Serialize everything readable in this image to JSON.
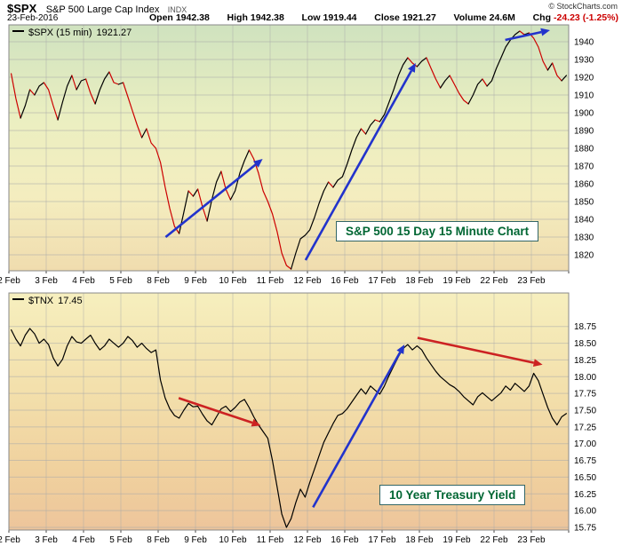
{
  "header": {
    "symbol": "$SPX",
    "name": "S&P 500 Large Cap Index",
    "exchange": "INDX",
    "copyright": "© StockCharts.com",
    "date": "23-Feb-2016",
    "quote": {
      "open_label": "Open",
      "open": "1942.38",
      "high_label": "High",
      "high": "1942.38",
      "low_label": "Low",
      "low": "1919.44",
      "close_label": "Close",
      "close": "1921.27",
      "volume_label": "Volume",
      "volume": "24.6M",
      "chg_label": "Chg",
      "chg": "-24.23 (-1.25%)"
    }
  },
  "colors": {
    "line_black": "#000000",
    "line_red": "#cc0000",
    "arrow_blue": "#2233cc",
    "arrow_red": "#cc2222",
    "grid": "#aaaaaa",
    "border": "#888888",
    "tick_text": "#000000"
  },
  "chart_data": [
    {
      "type": "line",
      "title": "S&P 500 15 Day 15 Minute Chart",
      "legend": {
        "symbol": "$SPX (15 min)",
        "value": "1921.27"
      },
      "categories": [
        "2 Feb",
        "3 Feb",
        "4 Feb",
        "5 Feb",
        "8 Feb",
        "9 Feb",
        "10 Feb",
        "11 Feb",
        "12 Feb",
        "16 Feb",
        "17 Feb",
        "18 Feb",
        "19 Feb",
        "22 Feb",
        "23 Feb"
      ],
      "points_per_day": 8,
      "ylim": [
        1811,
        1949.5
      ],
      "yticks": [
        "1940",
        "1930",
        "1920",
        "1910",
        "1900",
        "1890",
        "1880",
        "1870",
        "1860",
        "1850",
        "1840",
        "1830",
        "1820"
      ],
      "color_mode": "updown",
      "values": [
        1922,
        1908,
        1897,
        1904,
        1913,
        1910,
        1915,
        1917,
        1913,
        1904,
        1896,
        1906,
        1915,
        1921,
        1913,
        1918,
        1919,
        1911,
        1905,
        1913,
        1919,
        1923,
        1917,
        1916,
        1917,
        1909,
        1901,
        1893,
        1886,
        1891,
        1883,
        1880,
        1872,
        1858,
        1846,
        1836,
        1832,
        1844,
        1856,
        1853,
        1857,
        1847,
        1839,
        1851,
        1861,
        1867,
        1857,
        1851,
        1856,
        1866,
        1873,
        1879,
        1874,
        1866,
        1856,
        1850,
        1843,
        1833,
        1821,
        1814,
        1812,
        1821,
        1829,
        1831,
        1834,
        1841,
        1849,
        1856,
        1861,
        1858,
        1862,
        1864,
        1871,
        1879,
        1886,
        1891,
        1888,
        1893,
        1896,
        1895,
        1899,
        1906,
        1913,
        1921,
        1927,
        1931,
        1928,
        1926,
        1929,
        1931,
        1925,
        1919,
        1914,
        1918,
        1921,
        1916,
        1911,
        1907,
        1905,
        1910,
        1916,
        1919,
        1915,
        1918,
        1925,
        1931,
        1937,
        1941,
        1944,
        1946,
        1944,
        1945,
        1942,
        1937,
        1929,
        1924,
        1928,
        1921,
        1918,
        1921
      ],
      "annotations": {
        "arrows": [
          {
            "from": [
              4.2,
              1830
            ],
            "to": [
              6.8,
              1874
            ],
            "color": "blue"
          },
          {
            "from": [
              7.95,
              1817
            ],
            "to": [
              10.9,
              1928
            ],
            "color": "blue"
          },
          {
            "from": [
              13.3,
              1941
            ],
            "to": [
              14.5,
              1946.5
            ],
            "color": "blue"
          }
        ]
      }
    },
    {
      "type": "line",
      "title": "10 Year Treasury Yield",
      "legend": {
        "symbol": "$TNX",
        "value": "17.45"
      },
      "categories": [
        "2 Feb",
        "3 Feb",
        "4 Feb",
        "5 Feb",
        "8 Feb",
        "9 Feb",
        "10 Feb",
        "11 Feb",
        "12 Feb",
        "16 Feb",
        "17 Feb",
        "18 Feb",
        "19 Feb",
        "22 Feb",
        "23 Feb"
      ],
      "points_per_day": 8,
      "ylim": [
        15.71,
        19.25
      ],
      "yticks": [
        "18.75",
        "18.50",
        "18.25",
        "18.00",
        "17.75",
        "17.50",
        "17.25",
        "17.00",
        "16.75",
        "16.50",
        "16.25",
        "16.00",
        "15.75"
      ],
      "color_mode": "solid",
      "values": [
        18.7,
        18.56,
        18.46,
        18.62,
        18.72,
        18.64,
        18.5,
        18.56,
        18.48,
        18.28,
        18.16,
        18.26,
        18.46,
        18.6,
        18.52,
        18.5,
        18.56,
        18.62,
        18.5,
        18.4,
        18.46,
        18.56,
        18.5,
        18.44,
        18.5,
        18.6,
        18.54,
        18.44,
        18.5,
        18.42,
        18.36,
        18.4,
        17.95,
        17.68,
        17.52,
        17.42,
        17.38,
        17.5,
        17.6,
        17.55,
        17.56,
        17.44,
        17.34,
        17.28,
        17.4,
        17.52,
        17.56,
        17.48,
        17.54,
        17.62,
        17.66,
        17.54,
        17.4,
        17.28,
        17.18,
        17.08,
        16.75,
        16.35,
        15.95,
        15.75,
        15.88,
        16.12,
        16.32,
        16.2,
        16.42,
        16.62,
        16.82,
        17.02,
        17.16,
        17.3,
        17.42,
        17.45,
        17.52,
        17.62,
        17.72,
        17.82,
        17.74,
        17.86,
        17.8,
        17.74,
        17.86,
        18.02,
        18.16,
        18.3,
        18.42,
        18.48,
        18.4,
        18.46,
        18.4,
        18.28,
        18.18,
        18.08,
        18.0,
        17.94,
        17.88,
        17.84,
        17.78,
        17.7,
        17.64,
        17.58,
        17.7,
        17.76,
        17.7,
        17.64,
        17.7,
        17.76,
        17.86,
        17.8,
        17.9,
        17.84,
        17.78,
        17.86,
        18.05,
        17.94,
        17.74,
        17.54,
        17.38,
        17.28,
        17.4,
        17.45
      ],
      "annotations": {
        "arrows": [
          {
            "from": [
              4.55,
              17.68
            ],
            "to": [
              6.75,
              17.27
            ],
            "color": "red"
          },
          {
            "from": [
              8.15,
              16.05
            ],
            "to": [
              10.6,
              18.48
            ],
            "color": "blue"
          },
          {
            "from": [
              10.95,
              18.58
            ],
            "to": [
              14.3,
              18.18
            ],
            "color": "red"
          }
        ]
      }
    }
  ]
}
